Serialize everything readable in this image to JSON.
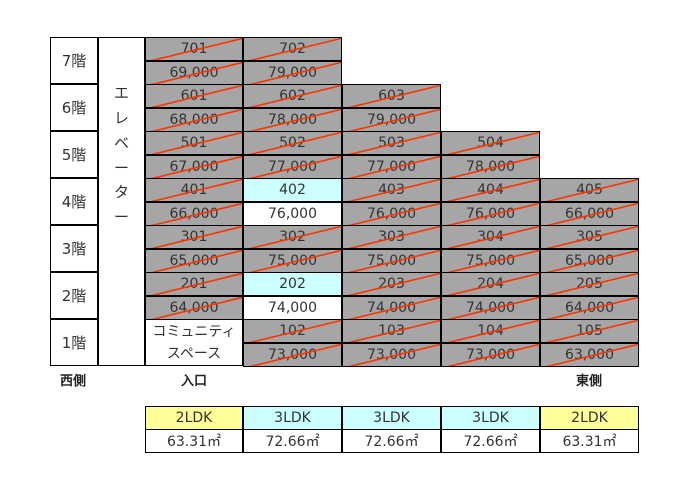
{
  "floor_labels": [
    "7階",
    "6階",
    "5階",
    "4階",
    "3階",
    "2階",
    "1階"
  ],
  "elevator_chars": [
    "エ",
    "レ",
    "ベ",
    "ー",
    "タ",
    "ー"
  ],
  "community_lines": [
    "コミュニティ",
    "スペース"
  ],
  "units": {
    "701": {
      "room": "701",
      "price": "69,000",
      "status": "sold"
    },
    "702": {
      "room": "702",
      "price": "79,000",
      "status": "sold"
    },
    "601": {
      "room": "601",
      "price": "68,000",
      "status": "sold"
    },
    "602": {
      "room": "602",
      "price": "78,000",
      "status": "sold"
    },
    "603": {
      "room": "603",
      "price": "79,000",
      "status": "sold"
    },
    "501": {
      "room": "501",
      "price": "67,000",
      "status": "sold"
    },
    "502": {
      "room": "502",
      "price": "77,000",
      "status": "sold"
    },
    "503": {
      "room": "503",
      "price": "77,000",
      "status": "sold"
    },
    "504": {
      "room": "504",
      "price": "78,000",
      "status": "sold"
    },
    "401": {
      "room": "401",
      "price": "66,000",
      "status": "sold"
    },
    "402": {
      "room": "402",
      "price": "76,000",
      "status": "available"
    },
    "403": {
      "room": "403",
      "price": "76,000",
      "status": "sold"
    },
    "404": {
      "room": "404",
      "price": "76,000",
      "status": "sold"
    },
    "405": {
      "room": "405",
      "price": "66,000",
      "status": "sold"
    },
    "301": {
      "room": "301",
      "price": "65,000",
      "status": "sold"
    },
    "302": {
      "room": "302",
      "price": "75,000",
      "status": "sold"
    },
    "303": {
      "room": "303",
      "price": "75,000",
      "status": "sold"
    },
    "304": {
      "room": "304",
      "price": "75,000",
      "status": "sold"
    },
    "305": {
      "room": "305",
      "price": "65,000",
      "status": "sold"
    },
    "201": {
      "room": "201",
      "price": "64,000",
      "status": "sold"
    },
    "202": {
      "room": "202",
      "price": "74,000",
      "status": "available"
    },
    "203": {
      "room": "203",
      "price": "74,000",
      "status": "sold"
    },
    "204": {
      "room": "204",
      "price": "74,000",
      "status": "sold"
    },
    "205": {
      "room": "205",
      "price": "64,000",
      "status": "sold"
    },
    "102": {
      "room": "102",
      "price": "73,000",
      "status": "sold"
    },
    "103": {
      "room": "103",
      "price": "73,000",
      "status": "sold"
    },
    "104": {
      "room": "104",
      "price": "73,000",
      "status": "sold"
    },
    "105": {
      "room": "105",
      "price": "63,000",
      "status": "sold"
    }
  },
  "labels": {
    "west": "西側",
    "entrance": "入口",
    "east": "東側"
  },
  "types": [
    {
      "type": "2LDK",
      "area": "63.31㎡",
      "color": "#ffff99"
    },
    {
      "type": "3LDK",
      "area": "72.66㎡",
      "color": "#ccffff"
    },
    {
      "type": "3LDK",
      "area": "72.66㎡",
      "color": "#ccffff"
    },
    {
      "type": "3LDK",
      "area": "72.66㎡",
      "color": "#ccffff"
    },
    {
      "type": "2LDK",
      "area": "63.31㎡",
      "color": "#ffff99"
    }
  ],
  "colors": {
    "sold": "#a6a6a6",
    "available": "#ccffff",
    "slash": "#ff3300"
  }
}
